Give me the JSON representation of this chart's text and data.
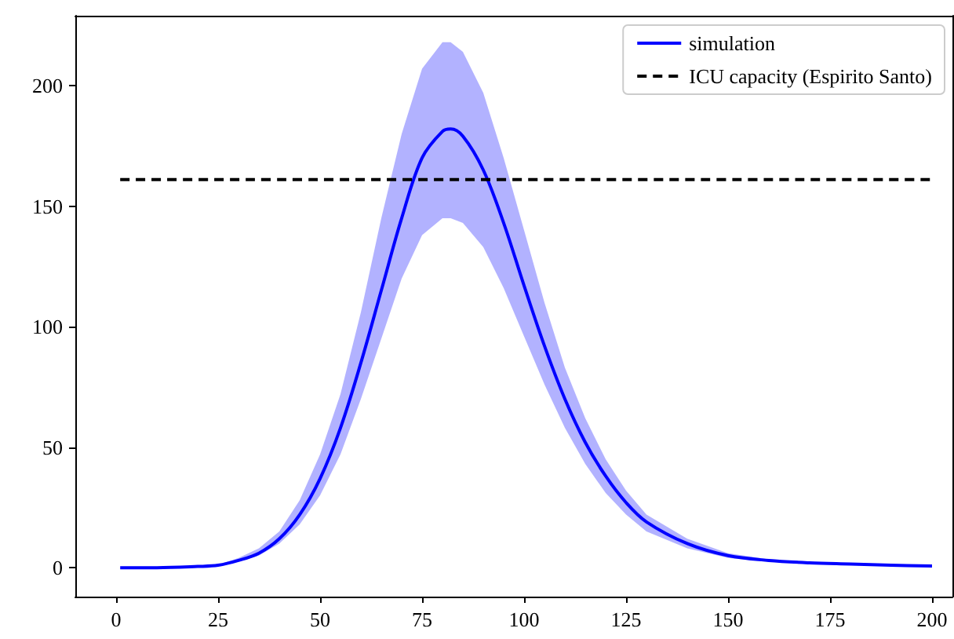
{
  "chart_data": {
    "type": "line",
    "x": [
      1,
      10,
      20,
      25,
      30,
      35,
      40,
      45,
      50,
      55,
      60,
      65,
      70,
      75,
      80,
      82,
      85,
      90,
      95,
      100,
      105,
      110,
      115,
      120,
      125,
      130,
      140,
      150,
      160,
      170,
      180,
      190,
      200
    ],
    "series": [
      {
        "name": "simulation",
        "color": "#0000ff",
        "values": [
          0,
          0,
          0.5,
          1,
          3,
          6,
          12,
          22,
          37,
          58,
          85,
          115,
          145,
          170,
          181,
          182,
          179,
          165,
          143,
          117,
          92,
          70,
          52,
          38,
          27,
          19,
          10,
          5,
          3,
          2,
          1.5,
          1,
          0.7
        ],
        "upper": [
          0,
          0,
          0.6,
          1.2,
          4,
          8,
          15,
          28,
          47,
          72,
          106,
          145,
          180,
          207,
          218,
          218,
          214,
          197,
          170,
          140,
          110,
          83,
          62,
          45,
          32,
          22,
          12,
          6,
          3.5,
          2.3,
          1.7,
          1.2,
          0.8
        ],
        "lower": [
          0,
          0,
          0.4,
          0.8,
          2.5,
          5,
          10,
          18,
          30,
          47,
          70,
          95,
          120,
          138,
          145,
          145,
          143,
          133,
          116,
          96,
          76,
          58,
          43,
          31,
          22,
          15,
          8,
          4,
          2.4,
          1.6,
          1.2,
          0.8,
          0.6
        ]
      },
      {
        "name": "ICU capacity (Espirito Santo)",
        "color": "#000000",
        "x": [
          1,
          200
        ],
        "values": [
          161,
          161
        ],
        "line_style": "dashed"
      }
    ],
    "xlim": [
      -10,
      205
    ],
    "xticks": [
      0,
      25,
      50,
      75,
      100,
      125,
      150,
      175,
      200
    ],
    "ylim": [
      -12,
      229
    ],
    "yticks": [
      0,
      50,
      100,
      150,
      200
    ],
    "grid": false,
    "legend": "top right",
    "marker": "none",
    "line_style": "solid"
  }
}
